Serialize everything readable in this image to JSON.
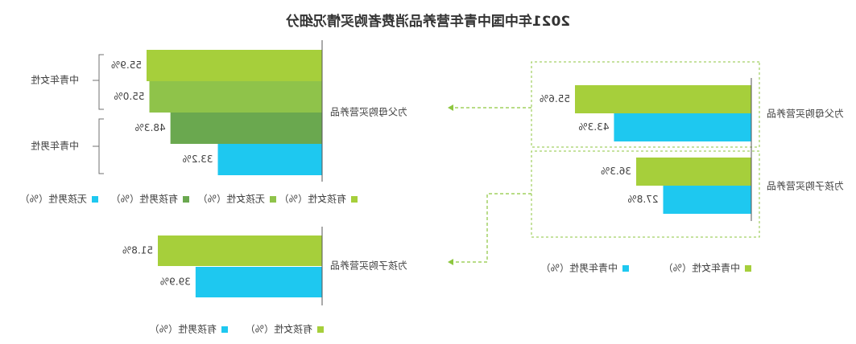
{
  "title": "2021年中国中青年营养品消费者购买情况细分",
  "colors": {
    "lime": "#a6cf3b",
    "limeMid": "#8fc34a",
    "green": "#6aa84f",
    "cyan": "#1ec8f0",
    "axis": "#555555",
    "dashed": "#8dc63f",
    "bracket": "#707070"
  },
  "chart_data": [
    {
      "type": "bar",
      "orientation": "horizontal",
      "panel": "top-left",
      "category": "为父母购买营养品",
      "groups": [
        {
          "label": "中青年女性",
          "members": [
            "有孩女性",
            "无孩女性"
          ]
        },
        {
          "label": "中青年男性",
          "members": [
            "有孩男性",
            "无孩男性"
          ]
        }
      ],
      "series": [
        {
          "name": "有孩女性（%）",
          "value": 55.9,
          "label": "55.9%"
        },
        {
          "name": "无孩女性（%）",
          "value": 55.0,
          "label": "55.0%"
        },
        {
          "name": "有孩男性（%）",
          "value": 48.3,
          "label": "48.3%"
        },
        {
          "name": "无孩男性（%）",
          "value": 33.2,
          "label": "33.2%"
        }
      ],
      "legend": [
        "有孩女性（%）",
        "无孩女性（%）",
        "有孩男性（%）",
        "无孩男性（%）"
      ]
    },
    {
      "type": "bar",
      "orientation": "horizontal",
      "panel": "bottom-left",
      "category": "为孩子购买营养品",
      "series": [
        {
          "name": "有孩女性（%）",
          "value": 51.8,
          "label": "51.8%"
        },
        {
          "name": "有孩男性（%）",
          "value": 39.9,
          "label": "39.9%"
        }
      ],
      "legend": [
        "有孩女性（%）",
        "有孩男性（%）"
      ]
    },
    {
      "type": "bar",
      "orientation": "horizontal",
      "panel": "right",
      "categories": [
        "为父母购买营养品",
        "为孩子购买营养品"
      ],
      "series": [
        {
          "name": "中青年女性（%）",
          "values": [
            55.6,
            36.3
          ],
          "labels": [
            "55.6%",
            "36.3%"
          ]
        },
        {
          "name": "中青年男性（%）",
          "values": [
            43.3,
            27.8
          ],
          "labels": [
            "43.3%",
            "27.8%"
          ]
        }
      ],
      "legend": [
        "中青年女性（%）",
        "中青年男性（%）"
      ]
    }
  ]
}
